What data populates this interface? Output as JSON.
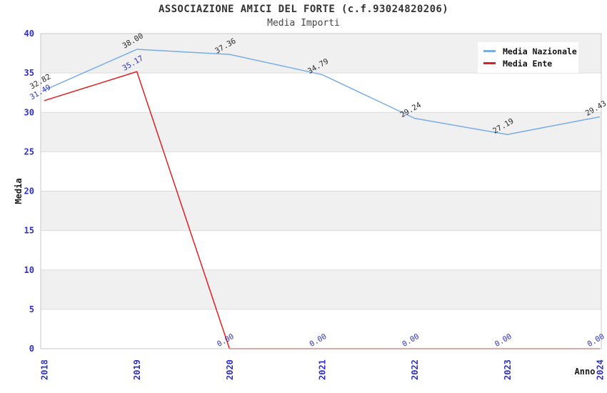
{
  "header": {
    "title": "ASSOCIAZIONE AMICI DEL FORTE (c.f.93024820206)",
    "subtitle": "Media Importi"
  },
  "chart_data": {
    "type": "line",
    "title": "ASSOCIAZIONE AMICI DEL FORTE (c.f.93024820206)",
    "subtitle": "Media Importi",
    "x": [
      "2018",
      "2019",
      "2020",
      "2021",
      "2022",
      "2023",
      "2024"
    ],
    "series": [
      {
        "name": "Media Nazionale",
        "color": "#79ade3",
        "label_color": "#2a2a2a",
        "values": [
          32.82,
          38.0,
          37.36,
          34.79,
          29.24,
          27.19,
          29.43
        ]
      },
      {
        "name": "Media Ente",
        "color": "#e02020",
        "label_color": "#3030c0",
        "values": [
          31.49,
          35.17,
          0.0,
          0.0,
          0.0,
          0.0,
          0.0
        ]
      }
    ],
    "xlabel": "Anno",
    "ylabel": "Media",
    "ylim": [
      0,
      40
    ],
    "ytick_step": 5,
    "legend_position": "top-right",
    "grid": true,
    "band_fill_light": "#ffffff",
    "band_fill_dark": "#f0f0f0",
    "gridline_color": "#dcdcdc",
    "plot_border_color": "#c8c8c8",
    "tick_label_color": "#3030c0",
    "axis_title_color": "#1a1a1a"
  }
}
